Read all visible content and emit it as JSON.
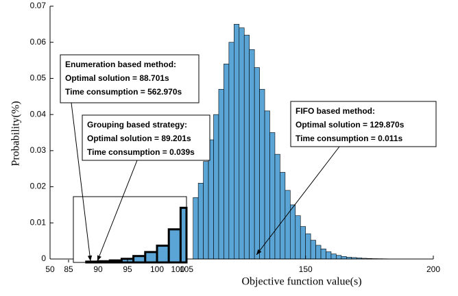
{
  "chart_data": [
    {
      "type": "histogram",
      "xlabel": "Objective function value(s)",
      "ylabel": "Probability(%)",
      "bins": [
        106,
        108,
        110,
        112,
        114,
        116,
        118,
        120,
        122,
        124,
        126,
        128,
        130,
        132,
        134,
        136,
        138,
        140,
        142,
        144,
        146,
        148,
        150,
        152,
        154,
        156,
        158,
        160,
        162,
        164,
        166,
        168,
        170,
        172,
        174,
        176,
        178,
        180,
        182,
        184,
        186,
        188,
        190
      ],
      "values": [
        0.017,
        0.021,
        0.027,
        0.033,
        0.04,
        0.047,
        0.054,
        0.06,
        0.065,
        0.064,
        0.062,
        0.058,
        0.053,
        0.047,
        0.041,
        0.035,
        0.029,
        0.024,
        0.019,
        0.015,
        0.012,
        0.009,
        0.007,
        0.0052,
        0.0038,
        0.0028,
        0.002,
        0.0014,
        0.001,
        0.0007,
        0.0005,
        0.0004,
        0.0003,
        0.0002,
        0.00015,
        0.0001,
        8e-05,
        6e-05,
        4e-05,
        3e-05,
        2e-05,
        1e-05
      ],
      "color": "#5aa5d6",
      "xlim": [
        50,
        200
      ],
      "xticks": [
        50,
        100,
        150,
        200
      ],
      "ylim": [
        0,
        0.07
      ],
      "yticks": [
        0,
        0.01,
        0.02,
        0.03,
        0.04,
        0.05,
        0.06,
        0.07
      ],
      "annotations": [
        {
          "lines": [
            "Enumeration based method:",
            "Optimal solution = 88.701s",
            "Time consumption = 562.970s"
          ]
        },
        {
          "lines": [
            "Grouping based strategy:",
            "Optimal solution = 89.201s",
            "Time consumption = 0.039s"
          ]
        },
        {
          "lines": [
            "FIFO based method:",
            "Optimal solution = 129.870s",
            "Time consumption = 0.011s"
          ]
        }
      ]
    },
    {
      "type": "histogram",
      "bins": [
        88,
        90,
        92,
        94,
        96,
        98,
        100,
        102,
        104,
        105
      ],
      "values": [
        0.0002,
        0.0003,
        0.0005,
        0.0009,
        0.0016,
        0.0026,
        0.0042,
        0.0083,
        0.0137
      ],
      "color": "#5aa5d6",
      "xlim": [
        85,
        105
      ],
      "xticks": [
        85,
        90,
        95,
        100,
        105
      ],
      "ylim": [
        0,
        0.0165
      ]
    }
  ]
}
